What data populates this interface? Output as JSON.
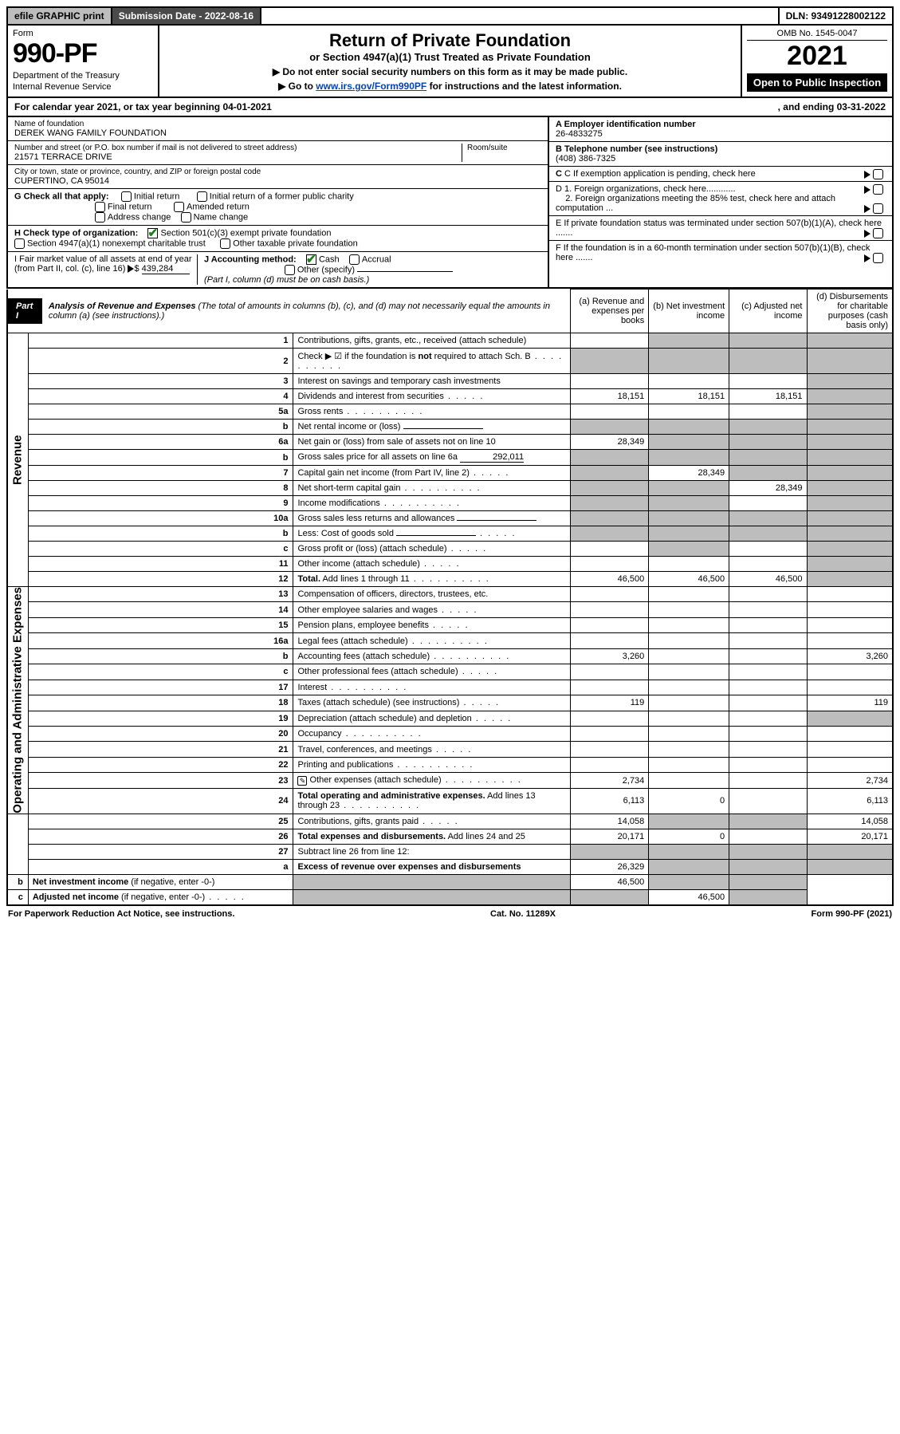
{
  "colors": {
    "black": "#000000",
    "white": "#ffffff",
    "grey_light": "#bdbdbd",
    "grey_dark": "#4a4a4a",
    "link": "#0645ad",
    "check_green": "#1a7f1a"
  },
  "topbar": {
    "efile": "efile GRAPHIC print",
    "submission_label": "Submission Date - 2022-08-16",
    "dln": "DLN: 93491228002122"
  },
  "header": {
    "form_word": "Form",
    "form_no": "990-PF",
    "dept1": "Department of the Treasury",
    "dept2": "Internal Revenue Service",
    "title": "Return of Private Foundation",
    "subtitle": "or Section 4947(a)(1) Trust Treated as Private Foundation",
    "note1": "▶ Do not enter social security numbers on this form as it may be made public.",
    "note2_pre": "▶ Go to ",
    "note2_link": "www.irs.gov/Form990PF",
    "note2_post": " for instructions and the latest information.",
    "omb": "OMB No. 1545-0047",
    "year": "2021",
    "open": "Open to Public Inspection"
  },
  "calrow": {
    "text_a": "For calendar year 2021, or tax year beginning 04-01-2021",
    "text_b": ", and ending 03-31-2022"
  },
  "info_left": {
    "name_lbl": "Name of foundation",
    "name_val": "DEREK WANG FAMILY FOUNDATION",
    "addr_lbl": "Number and street (or P.O. box number if mail is not delivered to street address)",
    "addr_val": "21571 TERRACE DRIVE",
    "room_lbl": "Room/suite",
    "city_lbl": "City or town, state or province, country, and ZIP or foreign postal code",
    "city_val": "CUPERTINO, CA  95014",
    "G_label": "G Check all that apply:",
    "G_opts": {
      "initial": "Initial return",
      "initial_former": "Initial return of a former public charity",
      "final": "Final return",
      "amended": "Amended return",
      "addr_change": "Address change",
      "name_change": "Name change"
    },
    "H_label": "H Check type of organization:",
    "H_501c3": "Section 501(c)(3) exempt private foundation",
    "H_4947": "Section 4947(a)(1) nonexempt charitable trust",
    "H_other_taxable": "Other taxable private foundation",
    "I_label": "I Fair market value of all assets at end of year (from Part II, col. (c), line 16)",
    "I_value": "439,284",
    "J_label": "J Accounting method:",
    "J_cash": "Cash",
    "J_accrual": "Accrual",
    "J_other": "Other (specify)",
    "J_note": "(Part I, column (d) must be on cash basis.)"
  },
  "info_right": {
    "A_lbl": "A Employer identification number",
    "A_val": "26-4833275",
    "B_lbl": "B Telephone number (see instructions)",
    "B_val": "(408) 386-7325",
    "C_lbl": "C If exemption application is pending, check here",
    "D1_lbl": "D 1. Foreign organizations, check here............",
    "D2_lbl": "2. Foreign organizations meeting the 85% test, check here and attach computation ...",
    "E_lbl": "E  If private foundation status was terminated under section 507(b)(1)(A), check here .......",
    "F_lbl": "F  If the foundation is in a 60-month termination under section 507(b)(1)(B), check here .......",
    "arrow": "▶"
  },
  "part1": {
    "label": "Part I",
    "title": "Analysis of Revenue and Expenses",
    "paren": "(The total of amounts in columns (b), (c), and (d) may not necessarily equal the amounts in column (a) (see instructions).)",
    "col_a": "(a)  Revenue and expenses per books",
    "col_b": "(b)  Net investment income",
    "col_c": "(c)  Adjusted net income",
    "col_d": "(d)  Disbursements for charitable purposes (cash basis only)"
  },
  "sides": {
    "revenue": "Revenue",
    "expenses": "Operating and Administrative Expenses"
  },
  "rows": [
    {
      "n": "1",
      "desc": "Contributions, gifts, grants, etc., received (attach schedule)",
      "a": "",
      "b": "grey",
      "c": "grey",
      "d": "grey"
    },
    {
      "n": "2",
      "desc": "Check ▶ ☑ if the foundation is <b>not</b> required to attach Sch. B",
      "dots": true,
      "a": "grey",
      "b": "grey",
      "c": "grey",
      "d": "grey"
    },
    {
      "n": "3",
      "desc": "Interest on savings and temporary cash investments",
      "a": "",
      "b": "",
      "c": "",
      "d": "grey"
    },
    {
      "n": "4",
      "desc": "Dividends and interest from securities",
      "dots": "short",
      "a": "18,151",
      "b": "18,151",
      "c": "18,151",
      "d": "grey"
    },
    {
      "n": "5a",
      "desc": "Gross rents",
      "dots": true,
      "a": "",
      "b": "",
      "c": "",
      "d": "grey"
    },
    {
      "n": "b",
      "desc": "Net rental income or (loss)",
      "inline_blank": true,
      "a": "grey",
      "b": "grey",
      "c": "grey",
      "d": "grey"
    },
    {
      "n": "6a",
      "desc": "Net gain or (loss) from sale of assets not on line 10",
      "a": "28,349",
      "b": "grey",
      "c": "grey",
      "d": "grey"
    },
    {
      "n": "b",
      "desc": "Gross sales price for all assets on line 6a",
      "inline_val": "292,011",
      "a": "grey",
      "b": "grey",
      "c": "grey",
      "d": "grey"
    },
    {
      "n": "7",
      "desc": "Capital gain net income (from Part IV, line 2)",
      "dots": "short",
      "a": "grey",
      "b": "28,349",
      "c": "grey",
      "d": "grey"
    },
    {
      "n": "8",
      "desc": "Net short-term capital gain",
      "dots": true,
      "a": "grey",
      "b": "grey",
      "c": "28,349",
      "d": "grey"
    },
    {
      "n": "9",
      "desc": "Income modifications",
      "dots": true,
      "a": "grey",
      "b": "grey",
      "c": "",
      "d": "grey"
    },
    {
      "n": "10a",
      "desc": "Gross sales less returns and allowances",
      "inline_blank": true,
      "a": "grey",
      "b": "grey",
      "c": "grey",
      "d": "grey"
    },
    {
      "n": "b",
      "desc": "Less: Cost of goods sold",
      "dots": "short",
      "inline_blank": true,
      "a": "grey",
      "b": "grey",
      "c": "grey",
      "d": "grey"
    },
    {
      "n": "c",
      "desc": "Gross profit or (loss) (attach schedule)",
      "dots": "short",
      "a": "",
      "b": "grey",
      "c": "",
      "d": "grey"
    },
    {
      "n": "11",
      "desc": "Other income (attach schedule)",
      "dots": "short",
      "a": "",
      "b": "",
      "c": "",
      "d": "grey"
    },
    {
      "n": "12",
      "desc": "<b>Total.</b> Add lines 1 through 11",
      "dots": true,
      "a": "46,500",
      "b": "46,500",
      "c": "46,500",
      "d": "grey"
    },
    {
      "n": "13",
      "desc": "Compensation of officers, directors, trustees, etc.",
      "a": "",
      "b": "",
      "c": "",
      "d": ""
    },
    {
      "n": "14",
      "desc": "Other employee salaries and wages",
      "dots": "short",
      "a": "",
      "b": "",
      "c": "",
      "d": ""
    },
    {
      "n": "15",
      "desc": "Pension plans, employee benefits",
      "dots": "short",
      "a": "",
      "b": "",
      "c": "",
      "d": ""
    },
    {
      "n": "16a",
      "desc": "Legal fees (attach schedule)",
      "dots": true,
      "a": "",
      "b": "",
      "c": "",
      "d": ""
    },
    {
      "n": "b",
      "desc": "Accounting fees (attach schedule)",
      "dots": true,
      "a": "3,260",
      "b": "",
      "c": "",
      "d": "3,260"
    },
    {
      "n": "c",
      "desc": "Other professional fees (attach schedule)",
      "dots": "short",
      "a": "",
      "b": "",
      "c": "",
      "d": ""
    },
    {
      "n": "17",
      "desc": "Interest",
      "dots": true,
      "a": "",
      "b": "",
      "c": "",
      "d": ""
    },
    {
      "n": "18",
      "desc": "Taxes (attach schedule) (see instructions)",
      "dots": "short",
      "a": "119",
      "b": "",
      "c": "",
      "d": "119"
    },
    {
      "n": "19",
      "desc": "Depreciation (attach schedule) and depletion",
      "dots": "short",
      "a": "",
      "b": "",
      "c": "",
      "d": "grey"
    },
    {
      "n": "20",
      "desc": "Occupancy",
      "dots": true,
      "a": "",
      "b": "",
      "c": "",
      "d": ""
    },
    {
      "n": "21",
      "desc": "Travel, conferences, and meetings",
      "dots": "short",
      "a": "",
      "b": "",
      "c": "",
      "d": ""
    },
    {
      "n": "22",
      "desc": "Printing and publications",
      "dots": true,
      "a": "",
      "b": "",
      "c": "",
      "d": ""
    },
    {
      "n": "23",
      "desc": "Other expenses (attach schedule)",
      "dots": true,
      "icon": true,
      "a": "2,734",
      "b": "",
      "c": "",
      "d": "2,734"
    },
    {
      "n": "24",
      "desc": "<b>Total operating and administrative expenses.</b> Add lines 13 through 23",
      "dots": true,
      "a": "6,113",
      "b": "0",
      "c": "",
      "d": "6,113"
    },
    {
      "n": "25",
      "desc": "Contributions, gifts, grants paid",
      "dots": "short",
      "a": "14,058",
      "b": "grey",
      "c": "grey",
      "d": "14,058"
    },
    {
      "n": "26",
      "desc": "<b>Total expenses and disbursements.</b> Add lines 24 and 25",
      "a": "20,171",
      "b": "0",
      "c": "",
      "d": "20,171"
    },
    {
      "n": "27",
      "desc": "Subtract line 26 from line 12:",
      "a": "grey",
      "b": "grey",
      "c": "grey",
      "d": "grey"
    },
    {
      "n": "a",
      "desc": "<b>Excess of revenue over expenses and disbursements</b>",
      "a": "26,329",
      "b": "grey",
      "c": "grey",
      "d": "grey"
    },
    {
      "n": "b",
      "desc": "<b>Net investment income</b> (if negative, enter -0-)",
      "a": "grey",
      "b": "46,500",
      "c": "grey",
      "d": "grey"
    },
    {
      "n": "c",
      "desc": "<b>Adjusted net income</b> (if negative, enter -0-)",
      "dots": "short",
      "a": "grey",
      "b": "grey",
      "c": "46,500",
      "d": "grey"
    }
  ],
  "footer": {
    "left": "For Paperwork Reduction Act Notice, see instructions.",
    "mid": "Cat. No. 11289X",
    "right": "Form 990-PF (2021)"
  }
}
